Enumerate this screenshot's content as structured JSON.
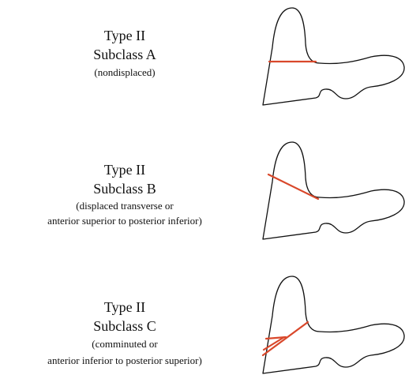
{
  "panels": [
    {
      "type": "Type II",
      "subclass": "Subclass A",
      "description": [
        "(nondisplaced)"
      ]
    },
    {
      "type": "Type II",
      "subclass": "Subclass B",
      "description": [
        "(displaced transverse or",
        "anterior superior to posterior inferior)"
      ]
    },
    {
      "type": "Type II",
      "subclass": "Subclass C",
      "description": [
        "(comminuted or",
        "anterior inferior to posterior superior)"
      ]
    }
  ]
}
